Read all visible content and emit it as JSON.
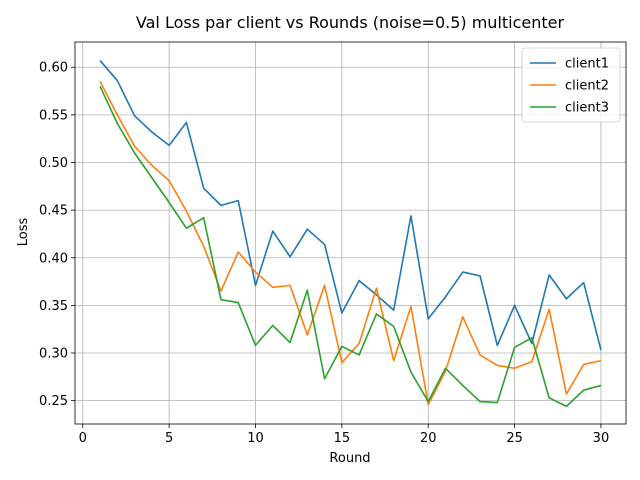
{
  "chart_data": {
    "type": "line",
    "title": "Val Loss par client vs Rounds (noise=0.5) multicenter",
    "xlabel": "Round",
    "ylabel": "Loss",
    "xlim": [
      -0.45,
      31.45
    ],
    "ylim": [
      0.2255,
      0.6265
    ],
    "xticks": [
      0,
      5,
      10,
      15,
      20,
      25,
      30
    ],
    "yticks": [
      0.25,
      0.3,
      0.35,
      0.4,
      0.45,
      0.5,
      0.55,
      0.6
    ],
    "ytick_labels": [
      "0.25",
      "0.30",
      "0.35",
      "0.40",
      "0.45",
      "0.50",
      "0.55",
      "0.60"
    ],
    "grid": true,
    "legend_position": "upper right",
    "x": [
      1,
      2,
      3,
      4,
      5,
      6,
      7,
      8,
      9,
      10,
      11,
      12,
      13,
      14,
      15,
      16,
      17,
      18,
      19,
      20,
      21,
      22,
      23,
      24,
      25,
      26,
      27,
      28,
      29,
      30
    ],
    "series": [
      {
        "name": "client1",
        "color": "#1f77b4",
        "values": [
          0.607,
          0.586,
          0.549,
          0.532,
          0.518,
          0.542,
          0.473,
          0.455,
          0.46,
          0.371,
          0.428,
          0.401,
          0.43,
          0.414,
          0.342,
          0.376,
          0.361,
          0.345,
          0.444,
          0.336,
          0.359,
          0.385,
          0.381,
          0.308,
          0.35,
          0.31,
          0.382,
          0.357,
          0.374,
          0.303
        ]
      },
      {
        "name": "client2",
        "color": "#ff7f0e",
        "values": [
          0.585,
          0.55,
          0.517,
          0.497,
          0.481,
          0.449,
          0.412,
          0.365,
          0.406,
          0.385,
          0.369,
          0.371,
          0.319,
          0.371,
          0.29,
          0.31,
          0.368,
          0.292,
          0.349,
          0.246,
          0.281,
          0.338,
          0.298,
          0.287,
          0.284,
          0.291,
          0.346,
          0.257,
          0.288,
          0.292
        ]
      },
      {
        "name": "client3",
        "color": "#2ca02c",
        "values": [
          0.58,
          0.541,
          0.51,
          0.484,
          0.458,
          0.431,
          0.442,
          0.356,
          0.353,
          0.308,
          0.329,
          0.311,
          0.366,
          0.273,
          0.307,
          0.298,
          0.341,
          0.328,
          0.28,
          0.249,
          0.284,
          0.266,
          0.249,
          0.248,
          0.306,
          0.316,
          0.253,
          0.244,
          0.261,
          0.266
        ]
      }
    ]
  }
}
